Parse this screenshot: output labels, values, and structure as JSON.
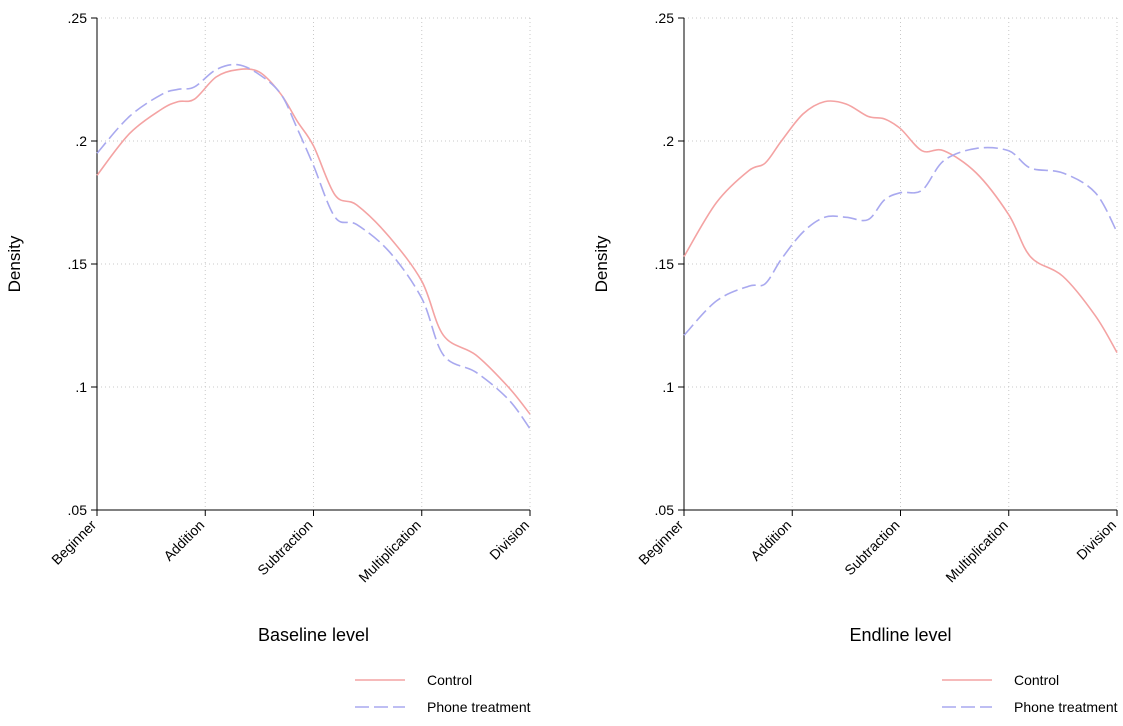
{
  "colors": {
    "control": "#f4a3a3",
    "phone": "#a9a9ef",
    "axis": "#000000",
    "grid": "#c8c8c8"
  },
  "chart_data": [
    {
      "type": "line",
      "xlabel": "Baseline level",
      "ylabel": "Density",
      "categories": [
        "Beginner",
        "Addition",
        "Subtraction",
        "Multiplication",
        "Division"
      ],
      "xlim": [
        1,
        5
      ],
      "ylim": [
        0.05,
        0.25
      ],
      "yticks": [
        ".05",
        ".1",
        ".15",
        ".2",
        ".25"
      ],
      "grid": true,
      "legend": "bottom-right",
      "series": [
        {
          "name": "Control",
          "style": "solid",
          "x": [
            1,
            1.3,
            1.6,
            1.75,
            1.9,
            2.1,
            2.3,
            2.5,
            2.7,
            2.85,
            3,
            3.2,
            3.4,
            3.7,
            4,
            4.2,
            4.5,
            4.8,
            5
          ],
          "y": [
            0.186,
            0.203,
            0.213,
            0.216,
            0.217,
            0.226,
            0.229,
            0.228,
            0.219,
            0.208,
            0.198,
            0.178,
            0.174,
            0.161,
            0.143,
            0.121,
            0.113,
            0.1,
            0.089
          ]
        },
        {
          "name": "Phone treatment",
          "style": "dashed",
          "x": [
            1,
            1.3,
            1.6,
            1.75,
            1.9,
            2.1,
            2.3,
            2.5,
            2.7,
            2.85,
            3,
            3.2,
            3.4,
            3.7,
            4,
            4.2,
            4.5,
            4.8,
            5
          ],
          "y": [
            0.195,
            0.21,
            0.219,
            0.221,
            0.222,
            0.229,
            0.231,
            0.227,
            0.219,
            0.205,
            0.19,
            0.169,
            0.166,
            0.155,
            0.136,
            0.113,
            0.106,
            0.095,
            0.083
          ]
        }
      ]
    },
    {
      "type": "line",
      "xlabel": "Endline level",
      "ylabel": "Density",
      "categories": [
        "Beginner",
        "Addition",
        "Subtraction",
        "Multiplication",
        "Division"
      ],
      "xlim": [
        1,
        5
      ],
      "ylim": [
        0.05,
        0.25
      ],
      "yticks": [
        ".05",
        ".1",
        ".15",
        ".2",
        ".25"
      ],
      "grid": true,
      "legend": "bottom-right",
      "series": [
        {
          "name": "Control",
          "style": "solid",
          "x": [
            1,
            1.3,
            1.6,
            1.75,
            1.9,
            2.1,
            2.3,
            2.5,
            2.7,
            2.85,
            3,
            3.2,
            3.4,
            3.7,
            4,
            4.2,
            4.5,
            4.8,
            5
          ],
          "y": [
            0.153,
            0.175,
            0.188,
            0.191,
            0.2,
            0.211,
            0.216,
            0.215,
            0.21,
            0.209,
            0.205,
            0.196,
            0.196,
            0.187,
            0.17,
            0.153,
            0.145,
            0.129,
            0.114
          ]
        },
        {
          "name": "Phone treatment",
          "style": "dashed",
          "x": [
            1,
            1.3,
            1.6,
            1.75,
            1.9,
            2.1,
            2.3,
            2.5,
            2.7,
            2.85,
            3,
            3.2,
            3.4,
            3.7,
            4,
            4.2,
            4.5,
            4.8,
            5
          ],
          "y": [
            0.121,
            0.135,
            0.141,
            0.142,
            0.152,
            0.163,
            0.169,
            0.169,
            0.168,
            0.176,
            0.179,
            0.18,
            0.192,
            0.197,
            0.196,
            0.189,
            0.187,
            0.179,
            0.163
          ]
        }
      ]
    }
  ]
}
